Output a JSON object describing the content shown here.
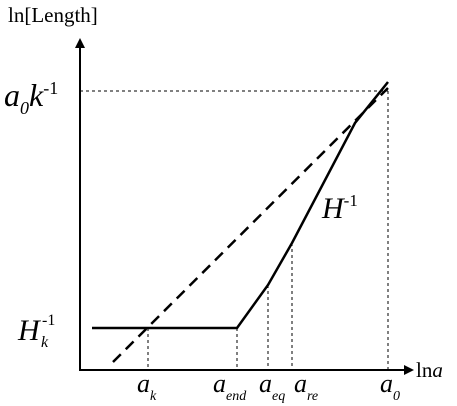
{
  "axes": {
    "y_label": "ln[Length]",
    "x_label": {
      "fn": "ln",
      "var": "a"
    }
  },
  "x_ticks": [
    {
      "base": "a",
      "sub": "k"
    },
    {
      "base": "a",
      "sub": "end"
    },
    {
      "base": "a",
      "sub": "eq"
    },
    {
      "base": "a",
      "sub": "re"
    },
    {
      "base": "a",
      "sub": "0"
    }
  ],
  "y_ticks": [
    {
      "base": "a",
      "sub": "0",
      "next": "k",
      "sup": "-1"
    },
    {
      "base": "H",
      "sub": "k",
      "sup": "-1"
    }
  ],
  "curve_label": {
    "base": "H",
    "sup": "-1"
  }
}
